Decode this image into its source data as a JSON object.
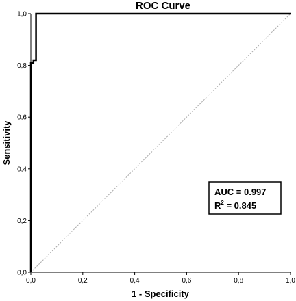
{
  "chart_data": {
    "type": "line",
    "title": "ROC Curve",
    "xlabel": "1 - Specificity",
    "ylabel": "Sensitivity",
    "xlim": [
      0,
      1
    ],
    "ylim": [
      0,
      1
    ],
    "x_ticks": [
      "0,0",
      "0,2",
      "0,4",
      "0,6",
      "0,8",
      "1,0"
    ],
    "y_ticks": [
      "0,0",
      "0,2",
      "0,4",
      "0,6",
      "0,8",
      "1,0"
    ],
    "grid": false,
    "series": [
      {
        "x": [
          0.0,
          0.0,
          0.01,
          0.01,
          0.02,
          0.02,
          1.0
        ],
        "y": [
          0.0,
          0.81,
          0.81,
          0.82,
          0.82,
          1.0,
          1.0
        ],
        "color": "#000000",
        "style": "solid"
      },
      {
        "x": [
          0.0,
          1.0
        ],
        "y": [
          0.0,
          1.0
        ],
        "color": "#aaaaaa",
        "style": "dotted"
      }
    ],
    "annotation": {
      "auc_label": "AUC = 0.997",
      "r2_prefix": "R",
      "r2_sup": "2",
      "r2_value": " = 0.845"
    }
  }
}
